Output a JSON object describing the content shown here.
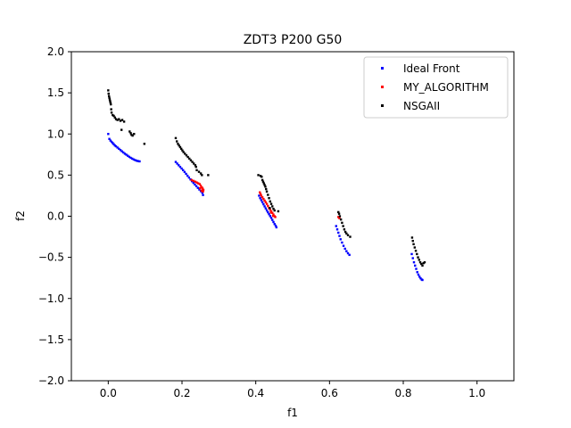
{
  "chart_data": {
    "type": "scatter",
    "title": "ZDT3 P200 G50",
    "xlabel": "f1",
    "ylabel": "f2",
    "xlim": [
      -0.1,
      1.1
    ],
    "ylim": [
      -2.0,
      2.0
    ],
    "xticks": [
      "0.0",
      "0.2",
      "0.4",
      "0.6",
      "0.8",
      "1.0"
    ],
    "xtick_values": [
      0.0,
      0.2,
      0.4,
      0.6,
      0.8,
      1.0
    ],
    "yticks": [
      "2.0",
      "1.5",
      "1.0",
      "0.5",
      "0.0",
      "−0.5",
      "−1.0",
      "−1.5",
      "−2.0"
    ],
    "ytick_values": [
      2.0,
      1.5,
      1.0,
      0.5,
      0.0,
      -0.5,
      -1.0,
      -1.5,
      -2.0
    ],
    "grid": false,
    "legend_position": "top-right",
    "series": [
      {
        "name": "Ideal Front",
        "color": "#0000ff",
        "points": [
          [
            0.0,
            1.0
          ],
          [
            0.003,
            0.94
          ],
          [
            0.006,
            0.92
          ],
          [
            0.009,
            0.905
          ],
          [
            0.012,
            0.89
          ],
          [
            0.015,
            0.875
          ],
          [
            0.018,
            0.86
          ],
          [
            0.021,
            0.85
          ],
          [
            0.025,
            0.835
          ],
          [
            0.029,
            0.82
          ],
          [
            0.033,
            0.805
          ],
          [
            0.037,
            0.79
          ],
          [
            0.041,
            0.775
          ],
          [
            0.045,
            0.76
          ],
          [
            0.049,
            0.748
          ],
          [
            0.053,
            0.735
          ],
          [
            0.057,
            0.722
          ],
          [
            0.061,
            0.71
          ],
          [
            0.065,
            0.7
          ],
          [
            0.069,
            0.69
          ],
          [
            0.073,
            0.682
          ],
          [
            0.077,
            0.675
          ],
          [
            0.081,
            0.67
          ],
          [
            0.085,
            0.667
          ],
          [
            0.183,
            0.66
          ],
          [
            0.187,
            0.64
          ],
          [
            0.191,
            0.62
          ],
          [
            0.195,
            0.6
          ],
          [
            0.199,
            0.58
          ],
          [
            0.203,
            0.56
          ],
          [
            0.207,
            0.538
          ],
          [
            0.211,
            0.515
          ],
          [
            0.215,
            0.492
          ],
          [
            0.219,
            0.47
          ],
          [
            0.223,
            0.448
          ],
          [
            0.227,
            0.426
          ],
          [
            0.231,
            0.405
          ],
          [
            0.235,
            0.385
          ],
          [
            0.239,
            0.365
          ],
          [
            0.243,
            0.345
          ],
          [
            0.247,
            0.325
          ],
          [
            0.251,
            0.305
          ],
          [
            0.255,
            0.285
          ],
          [
            0.257,
            0.258
          ],
          [
            0.409,
            0.25
          ],
          [
            0.412,
            0.22
          ],
          [
            0.415,
            0.195
          ],
          [
            0.418,
            0.17
          ],
          [
            0.421,
            0.145
          ],
          [
            0.424,
            0.12
          ],
          [
            0.427,
            0.095
          ],
          [
            0.43,
            0.07
          ],
          [
            0.433,
            0.048
          ],
          [
            0.436,
            0.025
          ],
          [
            0.439,
            0.002
          ],
          [
            0.442,
            -0.02
          ],
          [
            0.445,
            -0.045
          ],
          [
            0.448,
            -0.07
          ],
          [
            0.451,
            -0.095
          ],
          [
            0.454,
            -0.115
          ],
          [
            0.456,
            -0.135
          ],
          [
            0.618,
            -0.12
          ],
          [
            0.621,
            -0.16
          ],
          [
            0.624,
            -0.2
          ],
          [
            0.627,
            -0.24
          ],
          [
            0.63,
            -0.28
          ],
          [
            0.634,
            -0.32
          ],
          [
            0.638,
            -0.36
          ],
          [
            0.642,
            -0.395
          ],
          [
            0.646,
            -0.425
          ],
          [
            0.65,
            -0.45
          ],
          [
            0.654,
            -0.47
          ],
          [
            0.823,
            -0.46
          ],
          [
            0.826,
            -0.51
          ],
          [
            0.829,
            -0.56
          ],
          [
            0.832,
            -0.6
          ],
          [
            0.835,
            -0.64
          ],
          [
            0.838,
            -0.68
          ],
          [
            0.841,
            -0.71
          ],
          [
            0.844,
            -0.735
          ],
          [
            0.847,
            -0.755
          ],
          [
            0.85,
            -0.77
          ],
          [
            0.852,
            -0.775
          ]
        ]
      },
      {
        "name": "MY_ALGORITHM",
        "color": "#ff0000",
        "points": [
          [
            0.226,
            0.44
          ],
          [
            0.231,
            0.43
          ],
          [
            0.236,
            0.42
          ],
          [
            0.24,
            0.41
          ],
          [
            0.244,
            0.4
          ],
          [
            0.248,
            0.39
          ],
          [
            0.251,
            0.37
          ],
          [
            0.254,
            0.35
          ],
          [
            0.256,
            0.335
          ],
          [
            0.258,
            0.32
          ],
          [
            0.257,
            0.3
          ],
          [
            0.253,
            0.31
          ],
          [
            0.249,
            0.34
          ],
          [
            0.411,
            0.29
          ],
          [
            0.413,
            0.27
          ],
          [
            0.415,
            0.25
          ],
          [
            0.418,
            0.23
          ],
          [
            0.421,
            0.21
          ],
          [
            0.424,
            0.19
          ],
          [
            0.427,
            0.17
          ],
          [
            0.43,
            0.15
          ],
          [
            0.433,
            0.125
          ],
          [
            0.436,
            0.1
          ],
          [
            0.439,
            0.08
          ],
          [
            0.442,
            0.06
          ],
          [
            0.445,
            0.04
          ],
          [
            0.448,
            0.02
          ],
          [
            0.451,
            0.0
          ],
          [
            0.453,
            -0.01
          ],
          [
            0.447,
            0.005
          ],
          [
            0.441,
            0.045
          ],
          [
            0.624,
            -0.01
          ],
          [
            0.627,
            -0.025
          ]
        ]
      },
      {
        "name": "NSGAII",
        "color": "#000000",
        "points": [
          [
            0.0,
            1.53
          ],
          [
            0.001,
            1.49
          ],
          [
            0.002,
            1.46
          ],
          [
            0.003,
            1.44
          ],
          [
            0.004,
            1.42
          ],
          [
            0.005,
            1.4
          ],
          [
            0.006,
            1.38
          ],
          [
            0.007,
            1.36
          ],
          [
            0.008,
            1.3
          ],
          [
            0.009,
            1.26
          ],
          [
            0.012,
            1.23
          ],
          [
            0.015,
            1.22
          ],
          [
            0.018,
            1.2
          ],
          [
            0.021,
            1.18
          ],
          [
            0.025,
            1.17
          ],
          [
            0.029,
            1.18
          ],
          [
            0.033,
            1.16
          ],
          [
            0.038,
            1.17
          ],
          [
            0.043,
            1.15
          ],
          [
            0.036,
            1.05
          ],
          [
            0.058,
            1.03
          ],
          [
            0.061,
            1.01
          ],
          [
            0.063,
            0.99
          ],
          [
            0.066,
            0.98
          ],
          [
            0.07,
            1.0
          ],
          [
            0.098,
            0.88
          ],
          [
            0.183,
            0.95
          ],
          [
            0.186,
            0.91
          ],
          [
            0.189,
            0.88
          ],
          [
            0.192,
            0.86
          ],
          [
            0.195,
            0.84
          ],
          [
            0.198,
            0.82
          ],
          [
            0.201,
            0.8
          ],
          [
            0.204,
            0.78
          ],
          [
            0.208,
            0.76
          ],
          [
            0.212,
            0.74
          ],
          [
            0.216,
            0.72
          ],
          [
            0.22,
            0.7
          ],
          [
            0.224,
            0.68
          ],
          [
            0.228,
            0.66
          ],
          [
            0.232,
            0.64
          ],
          [
            0.236,
            0.62
          ],
          [
            0.238,
            0.6
          ],
          [
            0.24,
            0.56
          ],
          [
            0.246,
            0.54
          ],
          [
            0.251,
            0.52
          ],
          [
            0.254,
            0.5
          ],
          [
            0.271,
            0.5
          ],
          [
            0.407,
            0.5
          ],
          [
            0.413,
            0.49
          ],
          [
            0.416,
            0.48
          ],
          [
            0.418,
            0.44
          ],
          [
            0.42,
            0.42
          ],
          [
            0.422,
            0.4
          ],
          [
            0.424,
            0.38
          ],
          [
            0.426,
            0.36
          ],
          [
            0.428,
            0.33
          ],
          [
            0.43,
            0.3
          ],
          [
            0.433,
            0.26
          ],
          [
            0.436,
            0.22
          ],
          [
            0.439,
            0.18
          ],
          [
            0.442,
            0.15
          ],
          [
            0.445,
            0.12
          ],
          [
            0.448,
            0.09
          ],
          [
            0.451,
            0.07
          ],
          [
            0.438,
            0.1
          ],
          [
            0.461,
            0.06
          ],
          [
            0.624,
            0.05
          ],
          [
            0.626,
            0.03
          ],
          [
            0.628,
            0.0
          ],
          [
            0.631,
            -0.04
          ],
          [
            0.634,
            -0.08
          ],
          [
            0.637,
            -0.12
          ],
          [
            0.64,
            -0.16
          ],
          [
            0.643,
            -0.19
          ],
          [
            0.646,
            -0.21
          ],
          [
            0.65,
            -0.23
          ],
          [
            0.656,
            -0.25
          ],
          [
            0.824,
            -0.26
          ],
          [
            0.826,
            -0.3
          ],
          [
            0.828,
            -0.34
          ],
          [
            0.831,
            -0.38
          ],
          [
            0.834,
            -0.42
          ],
          [
            0.837,
            -0.46
          ],
          [
            0.84,
            -0.5
          ],
          [
            0.843,
            -0.53
          ],
          [
            0.846,
            -0.56
          ],
          [
            0.849,
            -0.58
          ],
          [
            0.852,
            -0.6
          ],
          [
            0.855,
            -0.57
          ],
          [
            0.858,
            -0.56
          ]
        ]
      }
    ]
  }
}
